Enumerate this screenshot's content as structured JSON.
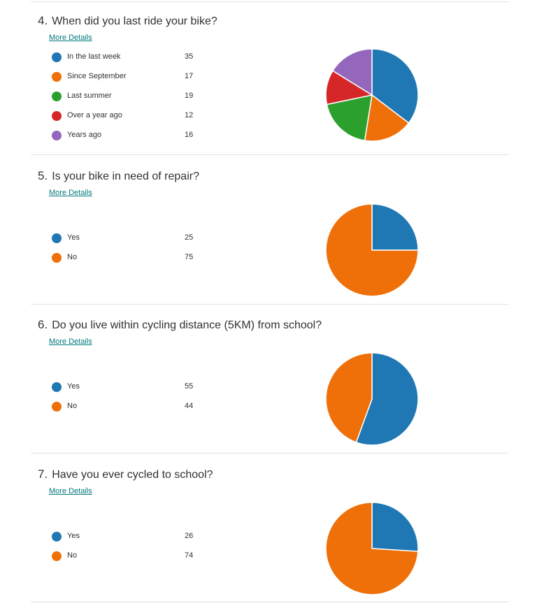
{
  "more_details_label": "More Details",
  "colors": [
    "#1f77b4",
    "#ef7009",
    "#2ca02c",
    "#d62728",
    "#9467bd"
  ],
  "questions": [
    {
      "number": "4.",
      "title": "When did you last ride your bike?",
      "options": [
        {
          "label": "In the last week",
          "count": "35"
        },
        {
          "label": "Since September",
          "count": "17"
        },
        {
          "label": "Last summer",
          "count": "19"
        },
        {
          "label": "Over a year ago",
          "count": "12"
        },
        {
          "label": "Years ago",
          "count": "16"
        }
      ]
    },
    {
      "number": "5.",
      "title": "Is your bike in need of repair?",
      "options": [
        {
          "label": "Yes",
          "count": "25"
        },
        {
          "label": "No",
          "count": "75"
        }
      ]
    },
    {
      "number": "6.",
      "title": "Do you live within cycling distance (5KM) from school?",
      "options": [
        {
          "label": "Yes",
          "count": "55"
        },
        {
          "label": "No",
          "count": "44"
        }
      ]
    },
    {
      "number": "7.",
      "title": "Have you ever cycled to school?",
      "options": [
        {
          "label": "Yes",
          "count": "26"
        },
        {
          "label": "No",
          "count": "74"
        }
      ]
    }
  ],
  "chart_data": [
    {
      "type": "pie",
      "categories": [
        "In the last week",
        "Since September",
        "Last summer",
        "Over a year ago",
        "Years ago"
      ],
      "values": [
        35,
        17,
        19,
        12,
        16
      ]
    },
    {
      "type": "pie",
      "categories": [
        "Yes",
        "No"
      ],
      "values": [
        25,
        75
      ]
    },
    {
      "type": "pie",
      "categories": [
        "Yes",
        "No"
      ],
      "values": [
        55,
        44
      ]
    },
    {
      "type": "pie",
      "categories": [
        "Yes",
        "No"
      ],
      "values": [
        26,
        74
      ]
    }
  ]
}
